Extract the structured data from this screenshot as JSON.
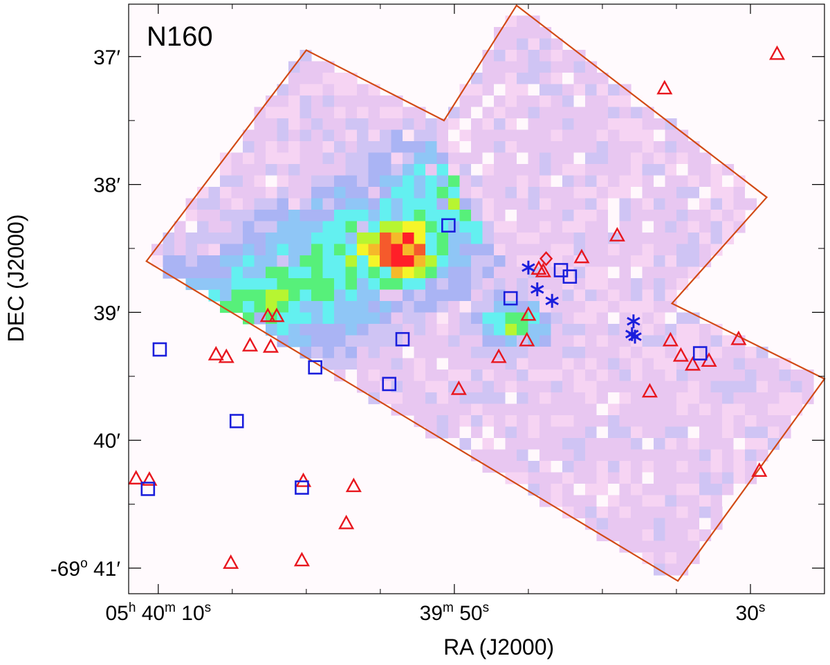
{
  "chart_data": {
    "type": "scatter",
    "title": "N160",
    "xlabel": "RA (J2000)",
    "ylabel": "DEC (J2000)",
    "x_unit": "seconds of RA offset, measured from 05h 39m 50s (positive = east, larger RA)",
    "y_unit": "arcminutes of DEC, shown as 37'..41' (i.e. -69° 37' .. -69° 41')",
    "xlim": [
      22.0,
      -25.0
    ],
    "ylim": [
      36.59,
      41.2
    ],
    "x_ticks": [
      {
        "value": 20,
        "label_parts": [
          "05",
          "h",
          " 40",
          "m",
          " 10",
          "s"
        ]
      },
      {
        "value": 0,
        "label_parts": [
          "39",
          "m",
          " 50",
          "s"
        ]
      },
      {
        "value": -20,
        "label_parts": [
          "30",
          "s"
        ]
      }
    ],
    "y_ticks": [
      {
        "value": 37,
        "label": "37′"
      },
      {
        "value": 38,
        "label": "38′"
      },
      {
        "value": 39,
        "label": "39′"
      },
      {
        "value": 40,
        "label": "40′"
      },
      {
        "value": 41,
        "label": "-69° 41′",
        "prefix": "-69",
        "deg": "o",
        "suffix": " 41′"
      }
    ],
    "minor_x": [
      15,
      10,
      5,
      -5,
      -10,
      -15,
      -25
    ],
    "minor_y": [
      37.5,
      38.5,
      39.5,
      40.5
    ],
    "footprint_color": "#d24a16",
    "footprint_polygon": [
      [
        20.8,
        38.6
      ],
      [
        10.0,
        36.95
      ],
      [
        0.7,
        37.5
      ],
      [
        -4.2,
        36.6
      ],
      [
        -21.1,
        38.1
      ],
      [
        -14.7,
        38.93
      ],
      [
        -25.0,
        39.52
      ],
      [
        -15.1,
        41.1
      ]
    ],
    "intensity_scale": [
      "#fff8fc",
      "#fde6f6",
      "#f6d4f3",
      "#e8c7f1",
      "#cfc4f4",
      "#aab4f4",
      "#8fc6f6",
      "#63f0f0",
      "#57f07a",
      "#b7f531",
      "#f5f529",
      "#f5b92a",
      "#f55a2c",
      "#ff1f28"
    ],
    "emission_peaks": [
      {
        "x": 3.5,
        "y": 38.55,
        "level": 13
      },
      {
        "x": -4.0,
        "y": 39.1,
        "level": 11
      }
    ],
    "series": [
      {
        "marker": "triangle",
        "color": "#e8161e",
        "points": [
          [
            -21.8,
            36.98
          ],
          [
            -14.2,
            37.25
          ],
          [
            -11.0,
            38.4
          ],
          [
            -8.6,
            38.57
          ],
          [
            -5.7,
            38.66
          ],
          [
            -6.0,
            38.68
          ],
          [
            -5.0,
            39.02
          ],
          [
            -4.9,
            39.22
          ],
          [
            -3.0,
            39.35
          ],
          [
            -14.6,
            39.22
          ],
          [
            -15.3,
            39.34
          ],
          [
            -17.2,
            39.38
          ],
          [
            -16.1,
            39.41
          ],
          [
            -19.2,
            39.21
          ],
          [
            -20.6,
            40.24
          ],
          [
            -13.2,
            39.62
          ],
          [
            -0.3,
            39.6
          ],
          [
            12.6,
            39.03
          ],
          [
            12.0,
            39.03
          ],
          [
            13.8,
            39.26
          ],
          [
            12.4,
            39.27
          ],
          [
            16.1,
            39.33
          ],
          [
            15.4,
            39.35
          ],
          [
            10.2,
            40.32
          ],
          [
            21.5,
            40.3
          ],
          [
            20.6,
            40.31
          ],
          [
            10.3,
            40.94
          ],
          [
            15.1,
            40.96
          ],
          [
            7.3,
            40.65
          ],
          [
            6.8,
            40.36
          ]
        ]
      },
      {
        "marker": "square",
        "color": "#1a1edc",
        "points": [
          [
            0.4,
            38.32
          ],
          [
            -7.2,
            38.67
          ],
          [
            -7.8,
            38.72
          ],
          [
            -3.8,
            38.89
          ],
          [
            3.5,
            39.21
          ],
          [
            -16.6,
            39.32
          ],
          [
            19.9,
            39.29
          ],
          [
            9.4,
            39.43
          ],
          [
            4.4,
            39.56
          ],
          [
            14.7,
            39.85
          ],
          [
            20.7,
            40.38
          ],
          [
            10.3,
            40.37
          ]
        ]
      },
      {
        "marker": "asterisk",
        "color": "#1a1edc",
        "points": [
          [
            -5.0,
            38.65
          ],
          [
            -5.6,
            38.82
          ],
          [
            -6.6,
            38.91
          ],
          [
            -12.1,
            39.07
          ],
          [
            -12.2,
            39.19
          ],
          [
            -12.0,
            39.17
          ]
        ]
      },
      {
        "marker": "diamond",
        "color": "#e8161e",
        "points": [
          [
            -6.2,
            38.58
          ]
        ]
      }
    ]
  }
}
